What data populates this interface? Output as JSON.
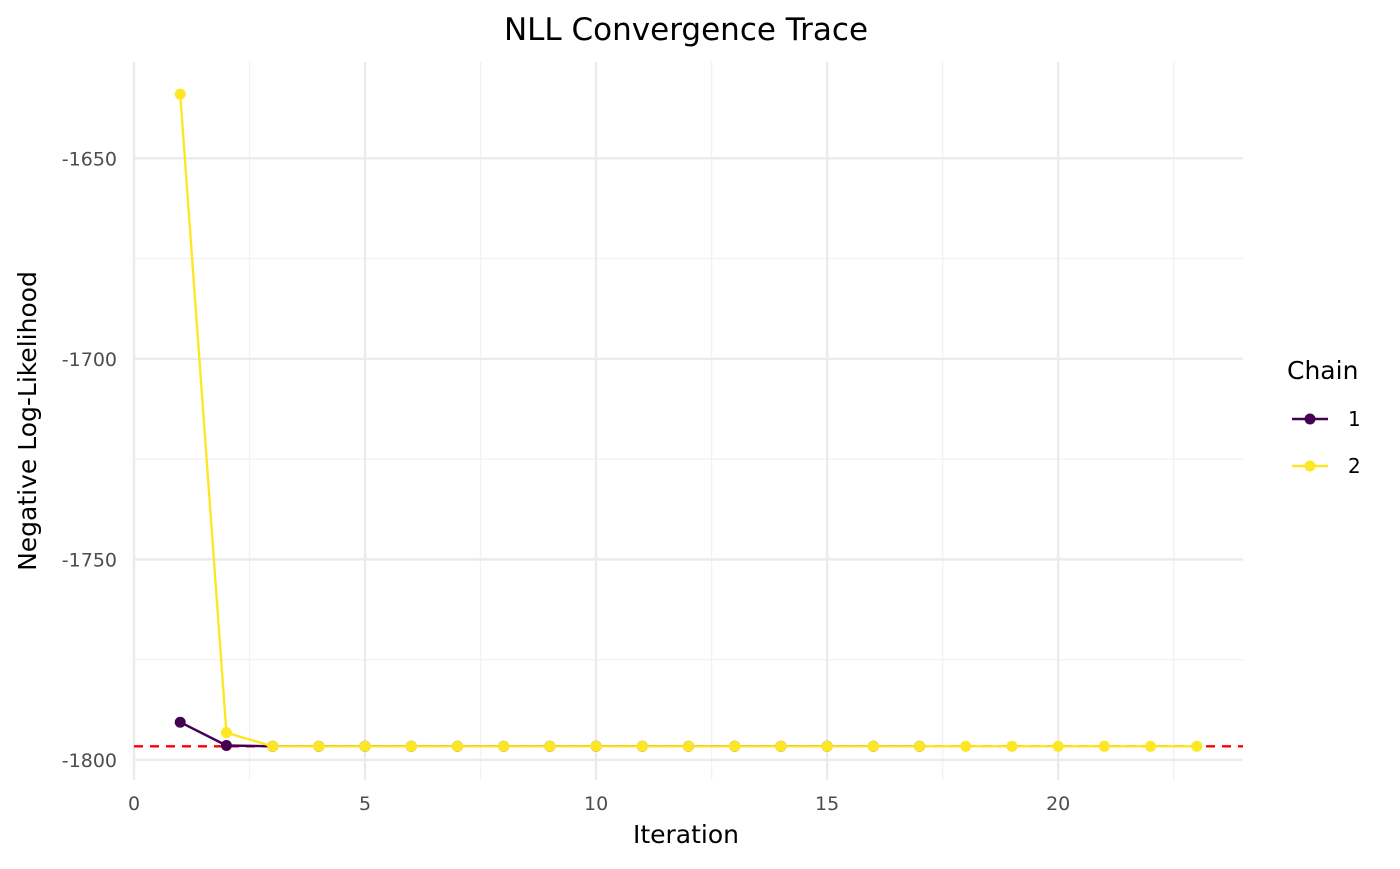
{
  "chart_data": {
    "type": "line",
    "title": "NLL Convergence Trace",
    "xlabel": "Iteration",
    "ylabel": "Negative Log-Likelihood",
    "xlim": [
      0,
      24
    ],
    "ylim": [
      -1805,
      -1626
    ],
    "x_ticks": [
      0,
      5,
      10,
      15,
      20
    ],
    "x_tick_labels": [
      "0",
      "5",
      "10",
      "15",
      "20"
    ],
    "y_ticks": [
      -1650,
      -1700,
      -1750,
      -1800
    ],
    "y_tick_labels": [
      "-1650",
      "-1700",
      "-1750",
      "-1800"
    ],
    "grid": true,
    "legend": {
      "title": "Chain",
      "placement": "right"
    },
    "reference_line": {
      "y": -1796.6,
      "color": "#ff0000",
      "style": "dashed"
    },
    "series": [
      {
        "name": "1",
        "color": "#440154",
        "x": [
          1,
          2,
          3,
          4,
          5,
          6,
          7,
          8,
          9,
          10,
          11,
          12,
          13,
          14,
          15,
          16,
          17
        ],
        "values": [
          -1790.6,
          -1796.4,
          -1796.6,
          -1796.6,
          -1796.6,
          -1796.6,
          -1796.6,
          -1796.6,
          -1796.6,
          -1796.6,
          -1796.6,
          -1796.6,
          -1796.6,
          -1796.6,
          -1796.6,
          -1796.6,
          -1796.6
        ]
      },
      {
        "name": "2",
        "color": "#fde725",
        "x": [
          1,
          2,
          3,
          4,
          5,
          6,
          7,
          8,
          9,
          10,
          11,
          12,
          13,
          14,
          15,
          16,
          17,
          18,
          19,
          20,
          21,
          22,
          23
        ],
        "values": [
          -1634.0,
          -1793.2,
          -1796.6,
          -1796.6,
          -1796.6,
          -1796.6,
          -1796.6,
          -1796.6,
          -1796.6,
          -1796.6,
          -1796.6,
          -1796.6,
          -1796.6,
          -1796.6,
          -1796.6,
          -1796.6,
          -1796.6,
          -1796.6,
          -1796.6,
          -1796.6,
          -1796.6,
          -1796.6,
          -1796.6
        ]
      }
    ]
  }
}
